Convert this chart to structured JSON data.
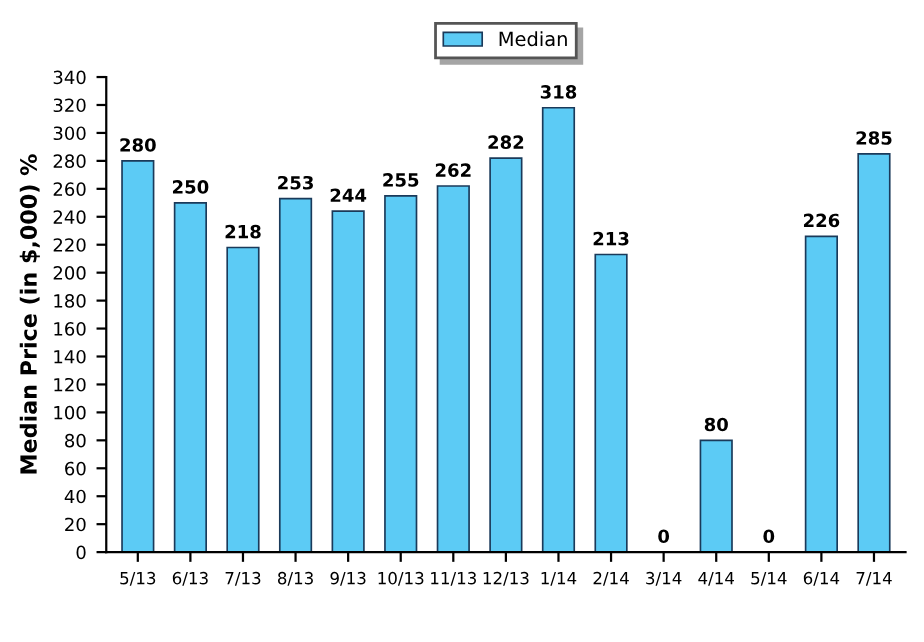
{
  "chart_data": {
    "type": "bar",
    "ylabel": "Median Price (in $,000) %",
    "categories": [
      "5/13",
      "6/13",
      "7/13",
      "8/13",
      "9/13",
      "10/13",
      "11/13",
      "12/13",
      "1/14",
      "2/14",
      "3/14",
      "4/14",
      "5/14",
      "6/14",
      "7/14"
    ],
    "series": [
      {
        "name": "Median",
        "color": "#5ccbf5",
        "values": [
          280,
          250,
          218,
          253,
          244,
          255,
          262,
          282,
          318,
          213,
          0,
          80,
          0,
          226,
          285
        ]
      }
    ],
    "ylim": [
      0,
      340
    ],
    "yticks": [
      0,
      20,
      40,
      60,
      80,
      100,
      120,
      140,
      160,
      180,
      200,
      220,
      240,
      260,
      280,
      300,
      320,
      340
    ],
    "data_labels": true,
    "legend": "top",
    "grid": false
  }
}
